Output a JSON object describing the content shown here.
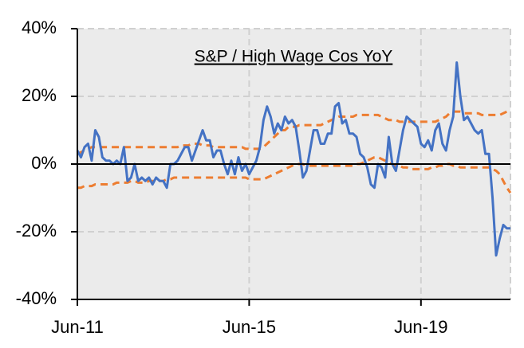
{
  "chart_data": {
    "type": "line",
    "title": "S&P / High Wage Cos YoY",
    "categories": [
      "Jun-11",
      null,
      null,
      null,
      null,
      null,
      null,
      null,
      null,
      null,
      null,
      null,
      null,
      null,
      null,
      null,
      null,
      null,
      null,
      null,
      null,
      null,
      null,
      null,
      null,
      null,
      null,
      null,
      null,
      null,
      null,
      null,
      null,
      null,
      null,
      null,
      null,
      null,
      null,
      null,
      null,
      null,
      null,
      null,
      null,
      null,
      null,
      null,
      "Jun-15",
      null,
      null,
      null,
      null,
      null,
      null,
      null,
      null,
      null,
      null,
      null,
      null,
      null,
      null,
      null,
      null,
      null,
      null,
      null,
      null,
      null,
      null,
      null,
      null,
      null,
      null,
      null,
      null,
      null,
      null,
      null,
      null,
      null,
      null,
      null,
      null,
      null,
      null,
      null,
      null,
      null,
      null,
      null,
      null,
      null,
      null,
      null,
      "Jun-19",
      null,
      null,
      null,
      null,
      null,
      null,
      null,
      null,
      null,
      null,
      null,
      null,
      null,
      null,
      null,
      null,
      null,
      null,
      null,
      null,
      null,
      null,
      null,
      null,
      null
    ],
    "series": [
      {
        "color": "#4472c4",
        "dashed": false,
        "values": [
          4,
          2,
          5,
          6,
          1,
          10,
          8,
          2,
          1,
          1,
          0,
          1,
          0,
          5,
          -5,
          -4,
          0,
          -5,
          -4,
          -5,
          -4,
          -6,
          -4,
          -5,
          -5,
          -7,
          0,
          0,
          1,
          3,
          5,
          5,
          1,
          4,
          7,
          10,
          7,
          7,
          2,
          4,
          4,
          0,
          -3,
          1,
          -3,
          2,
          -2,
          0,
          -3,
          -1,
          1,
          5,
          13,
          17,
          14,
          9,
          12,
          10,
          14,
          12,
          13,
          11,
          4,
          -4,
          -2,
          4,
          10,
          10,
          6,
          6,
          9,
          9,
          17,
          18,
          12,
          13,
          9,
          9,
          8,
          3,
          2,
          -1,
          -6,
          -7,
          0,
          -1,
          -4,
          8,
          0,
          -2,
          4,
          10,
          14,
          13,
          12,
          11,
          6,
          5,
          7,
          4,
          10,
          12,
          6,
          4,
          10,
          14,
          30,
          20,
          13,
          14,
          12,
          10,
          9,
          10,
          3,
          3,
          -10,
          -27,
          -22,
          -18,
          -19,
          -19
        ]
      },
      {
        "color": "#ed7d31",
        "dashed": true,
        "values": [
          3,
          3.5,
          4,
          4.5,
          5,
          5,
          5,
          5,
          5,
          5,
          5,
          5,
          5,
          5,
          5,
          5,
          5,
          5,
          5,
          5,
          5,
          5,
          5,
          5,
          5,
          5,
          5,
          5,
          5,
          5.5,
          5.5,
          5.5,
          6,
          6,
          6,
          5.5,
          5.5,
          5.5,
          5,
          5,
          5,
          5,
          5,
          5,
          5,
          5,
          5,
          4.5,
          4.5,
          4.5,
          4.5,
          4.5,
          5,
          6,
          7,
          8,
          9,
          10,
          10,
          11,
          11,
          11,
          11.5,
          11.5,
          11.5,
          11.5,
          11.5,
          11.5,
          11.5,
          12,
          12.5,
          13,
          13.5,
          14,
          14,
          14,
          14,
          14,
          14.5,
          14.5,
          14.5,
          14.5,
          14.5,
          14.5,
          14.5,
          14,
          13.5,
          13,
          13,
          13,
          12.5,
          12.5,
          12.5,
          12.5,
          12.5,
          12.5,
          12.5,
          12.5,
          12.5,
          12.5,
          12.5,
          13,
          13.5,
          14,
          15,
          15.5,
          15.5,
          15.5,
          15,
          15,
          15,
          15,
          15,
          14.5,
          14.5,
          14.5,
          14.5,
          14.5,
          14.5,
          15,
          15.5,
          16
        ]
      },
      {
        "color": "#ed7d31",
        "dashed": true,
        "values": [
          -7,
          -7,
          -6.5,
          -6.5,
          -6.5,
          -6,
          -6,
          -6,
          -6,
          -6,
          -6,
          -5.5,
          -5.5,
          -5.5,
          -5.5,
          -5,
          -5,
          -5.5,
          -5.5,
          -5.5,
          -5,
          -5,
          -5,
          -5,
          -5,
          -4.5,
          -4.5,
          -4,
          -4,
          -4,
          -4,
          -4,
          -4,
          -4,
          -4,
          -4,
          -4,
          -4,
          -4,
          -4,
          -4,
          -4,
          -4,
          -4,
          -4,
          -4,
          -4,
          -4,
          -4.5,
          -4.5,
          -4.5,
          -4.5,
          -4.5,
          -4,
          -3.5,
          -3,
          -2.5,
          -2,
          -1.5,
          -1,
          -0.5,
          0,
          0,
          0,
          -0.5,
          -0.5,
          -0.5,
          -0.5,
          -0.5,
          -0.5,
          -0.5,
          -0.5,
          -0.5,
          -0.5,
          -0.5,
          -0.5,
          -0.5,
          -0.5,
          0,
          0,
          0.5,
          1,
          1.5,
          2,
          2,
          1.5,
          1,
          0.5,
          0,
          -0.5,
          -0.5,
          -1,
          -1,
          -1.5,
          -1.5,
          -1.5,
          -1.5,
          -1.5,
          -1.5,
          -1,
          -1,
          -0.5,
          -0.5,
          0,
          0,
          -0.5,
          -0.5,
          -1,
          -1,
          -1,
          -1,
          -1,
          -1,
          -1,
          -1,
          -1,
          -1.5,
          -2,
          -3,
          -5,
          -7,
          -8.5
        ]
      }
    ],
    "ylim": [
      -40,
      40
    ],
    "yticks": [
      {
        "value": -40,
        "label": "-40%"
      },
      {
        "value": -20,
        "label": "-20%"
      },
      {
        "value": 0,
        "label": "0%"
      },
      {
        "value": 20,
        "label": "20%"
      },
      {
        "value": 40,
        "label": "40%"
      }
    ],
    "grid": true
  }
}
